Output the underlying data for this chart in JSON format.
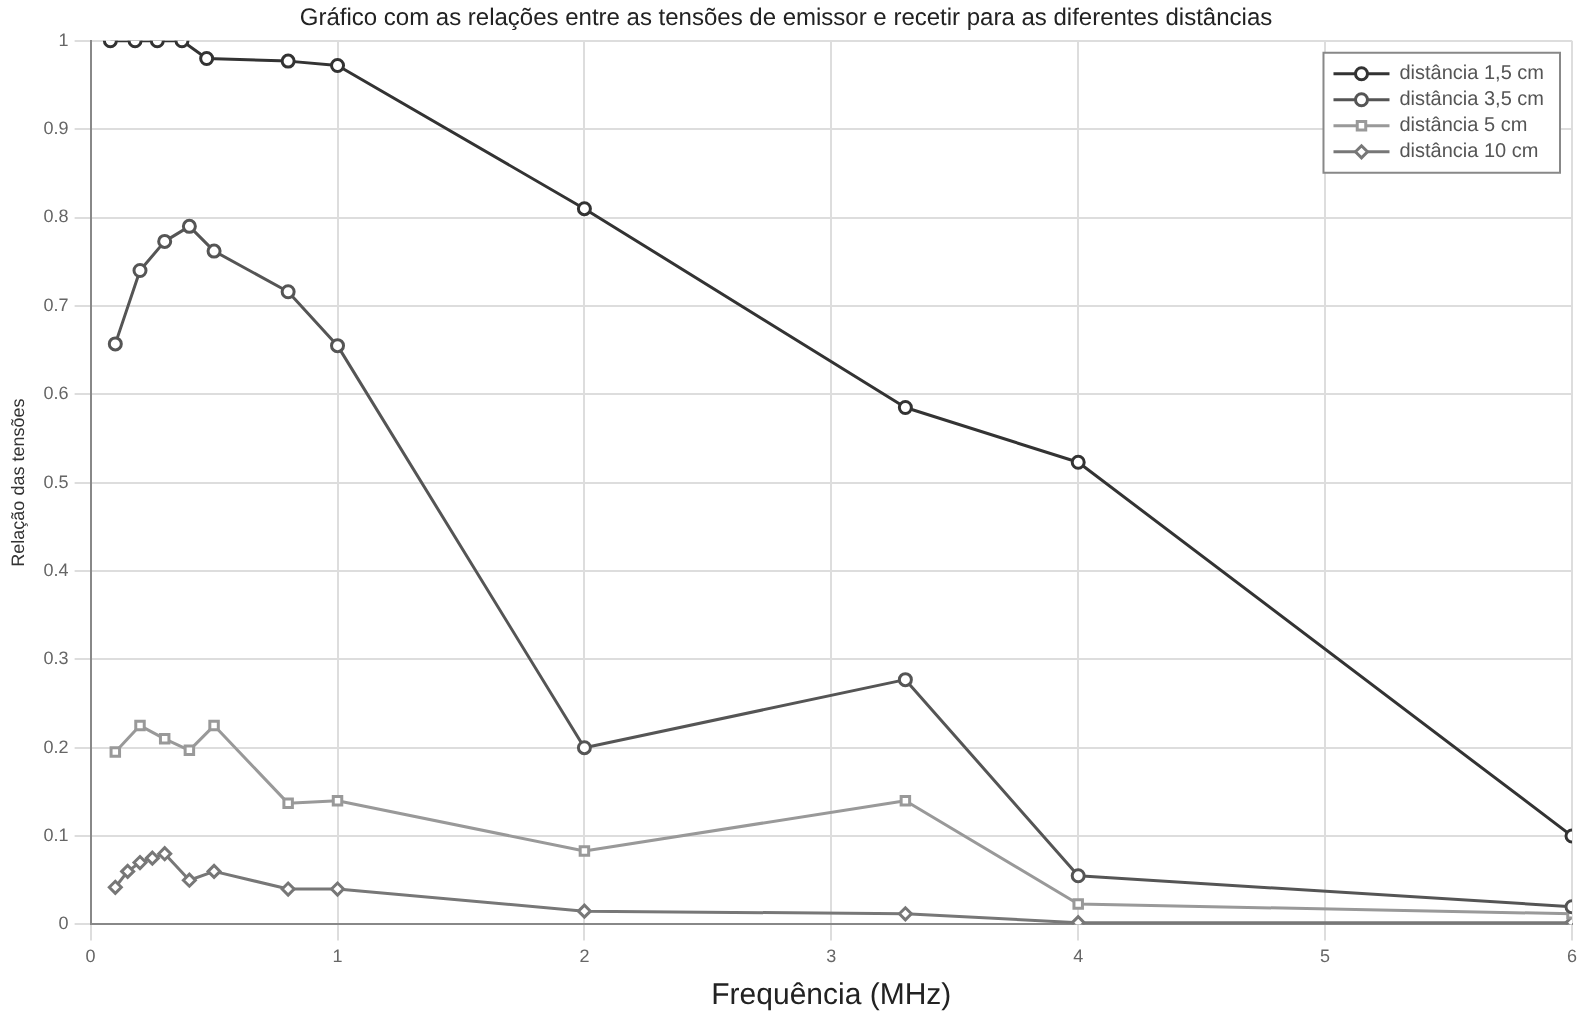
{
  "chart_data": {
    "type": "line",
    "title": "Gráfico com as relações entre as tensões de emissor e recetir para as diferentes distâncias",
    "xlabel": "Frequência (MHz)",
    "ylabel": "Relação das tensões",
    "xlim": [
      0,
      6
    ],
    "xticks": [
      0,
      1,
      2,
      3,
      4,
      5,
      6
    ],
    "ylim": [
      0,
      1
    ],
    "yticks": [
      0,
      0.1,
      0.2,
      0.3,
      0.4,
      0.5,
      0.6,
      0.7,
      0.8,
      0.9,
      1
    ],
    "grid": true,
    "legend": "top right",
    "line_style": "solid",
    "series": [
      {
        "name": "distância 1,5 cm",
        "color": "#333333",
        "marker": "circle",
        "x": [
          0.08,
          0.18,
          0.27,
          0.37,
          0.47,
          0.8,
          1,
          2,
          3.3,
          4,
          6
        ],
        "values": [
          1,
          1,
          1,
          1,
          0.98,
          0.977,
          0.972,
          0.81,
          0.585,
          0.523,
          0.1
        ]
      },
      {
        "name": "distância 3,5 cm",
        "color": "#555555",
        "marker": "circle",
        "x": [
          0.1,
          0.2,
          0.3,
          0.4,
          0.5,
          0.8,
          1,
          2,
          3.3,
          4,
          6
        ],
        "values": [
          0.657,
          0.74,
          0.773,
          0.79,
          0.762,
          0.716,
          0.655,
          0.2,
          0.277,
          0.055,
          0.02
        ]
      },
      {
        "name": "distância 5 cm",
        "color": "#999999",
        "marker": "square",
        "x": [
          0.1,
          0.2,
          0.3,
          0.4,
          0.5,
          0.8,
          1,
          2,
          3.3,
          4,
          6
        ],
        "values": [
          0.195,
          0.225,
          0.21,
          0.197,
          0.225,
          0.137,
          0.14,
          0.083,
          0.14,
          0.023,
          0.012
        ]
      },
      {
        "name": "distância 10 cm",
        "color": "#777777",
        "marker": "diamond",
        "x": [
          0.1,
          0.15,
          0.2,
          0.25,
          0.3,
          0.4,
          0.5,
          0.8,
          1,
          2,
          3.3,
          4,
          6
        ],
        "values": [
          0.042,
          0.06,
          0.07,
          0.075,
          0.08,
          0.05,
          0.06,
          0.04,
          0.04,
          0.015,
          0.012,
          0.002,
          0.002
        ]
      }
    ]
  }
}
